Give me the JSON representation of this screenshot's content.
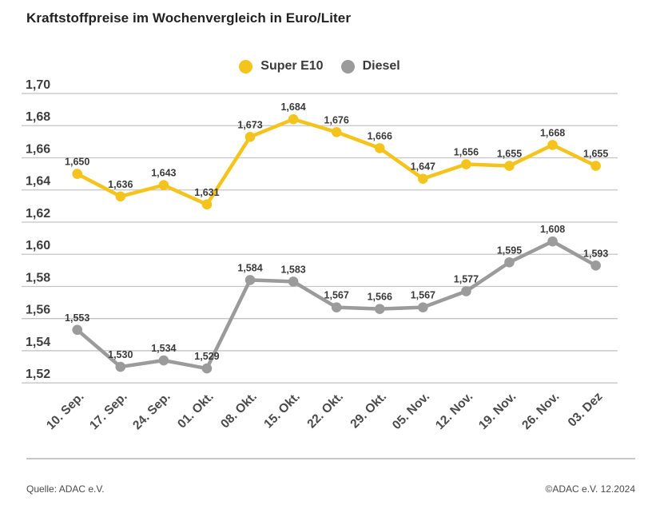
{
  "title": "Kraftstoffpreise im Wochenvergleich in Euro/Liter",
  "footer": {
    "source": "Quelle: ADAC e.V.",
    "copyright": "©ADAC e.V. 12.2024"
  },
  "colors": {
    "super_e10": "#F5C41C",
    "diesel": "#9B9B9B",
    "grid": "#C4C4C4"
  },
  "chart_data": {
    "type": "line",
    "title": "Kraftstoffpreise im Wochenvergleich in Euro/Liter",
    "unit": "Euro/Liter",
    "grid": true,
    "legend_position": "top-center",
    "categories": [
      "10. Sep.",
      "17. Sep.",
      "24. Sep.",
      "01. Okt.",
      "08. Okt.",
      "15. Okt.",
      "22. Okt.",
      "29. Okt.",
      "05. Nov.",
      "12. Nov.",
      "19. Nov.",
      "26. Nov.",
      "03. Dez"
    ],
    "y_ticks": [
      "1,70",
      "1,68",
      "1,66",
      "1,64",
      "1,62",
      "1,60",
      "1,58",
      "1,56",
      "1,54",
      "1,52"
    ],
    "y_tick_values": [
      1.7,
      1.68,
      1.66,
      1.64,
      1.62,
      1.6,
      1.58,
      1.56,
      1.54,
      1.52
    ],
    "ylim": [
      1.52,
      1.7
    ],
    "series": [
      {
        "name": "Super E10",
        "color": "#F5C41C",
        "values": [
          1.65,
          1.636,
          1.643,
          1.631,
          1.673,
          1.684,
          1.676,
          1.666,
          1.647,
          1.656,
          1.655,
          1.668,
          1.655
        ],
        "labels": [
          "1,650",
          "1,636",
          "1,643",
          "1,631",
          "1,673",
          "1,684",
          "1,676",
          "1,666",
          "1,647",
          "1,656",
          "1,655",
          "1,668",
          "1,655"
        ]
      },
      {
        "name": "Diesel",
        "color": "#9B9B9B",
        "values": [
          1.553,
          1.53,
          1.534,
          1.529,
          1.584,
          1.583,
          1.567,
          1.566,
          1.567,
          1.577,
          1.595,
          1.608,
          1.593
        ],
        "labels": [
          "1,553",
          "1,530",
          "1,534",
          "1,529",
          "1,584",
          "1,583",
          "1,567",
          "1,566",
          "1,567",
          "1,577",
          "1,595",
          "1,608",
          "1,593"
        ]
      }
    ]
  }
}
